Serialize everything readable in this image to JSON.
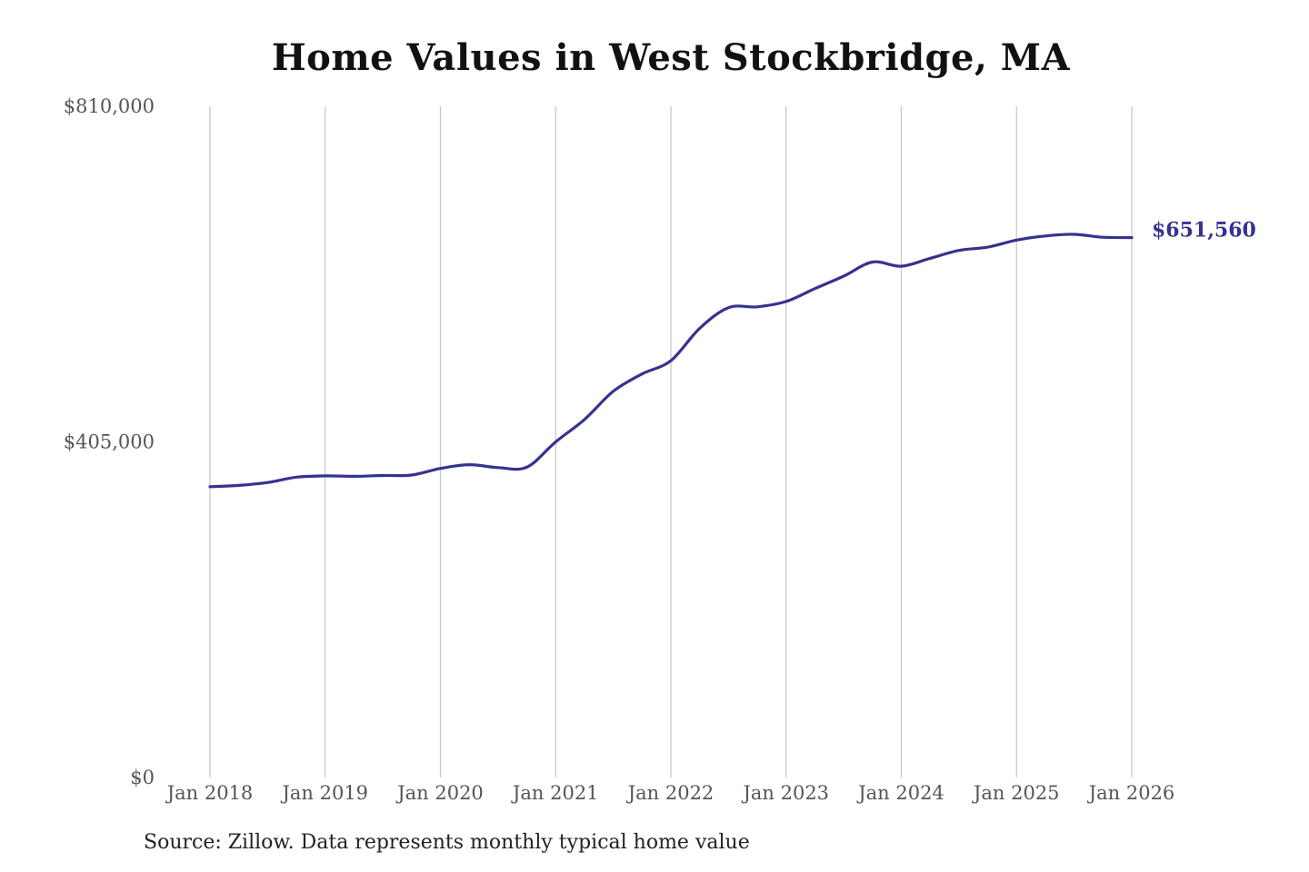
{
  "chart_data": {
    "type": "line",
    "title": "Home Values in West Stockbridge, MA",
    "xlabel": "",
    "ylabel": "",
    "ylim": [
      0,
      810000
    ],
    "xlim": [
      "2018-01",
      "2026-01"
    ],
    "yticks": [
      {
        "value": 0,
        "label": "$0"
      },
      {
        "value": 405000,
        "label": "$405,000"
      },
      {
        "value": 810000,
        "label": "$810,000"
      }
    ],
    "xticks": [
      {
        "value": "2018-01",
        "label": "Jan 2018"
      },
      {
        "value": "2019-01",
        "label": "Jan 2019"
      },
      {
        "value": "2020-01",
        "label": "Jan 2020"
      },
      {
        "value": "2021-01",
        "label": "Jan 2021"
      },
      {
        "value": "2022-01",
        "label": "Jan 2022"
      },
      {
        "value": "2023-01",
        "label": "Jan 2023"
      },
      {
        "value": "2024-01",
        "label": "Jan 2024"
      },
      {
        "value": "2025-01",
        "label": "Jan 2025"
      },
      {
        "value": "2026-01",
        "label": "Jan 2026"
      }
    ],
    "grid": {
      "vertical": true,
      "horizontal": false
    },
    "line_color": "#35338f",
    "series": [
      {
        "end_label": "$651,560",
        "points": [
          [
            "2018-01",
            351000
          ],
          [
            "2018-04",
            352500
          ],
          [
            "2018-07",
            356000
          ],
          [
            "2018-10",
            362500
          ],
          [
            "2019-01",
            364000
          ],
          [
            "2019-04",
            363500
          ],
          [
            "2019-07",
            364500
          ],
          [
            "2019-10",
            365000
          ],
          [
            "2020-01",
            373000
          ],
          [
            "2020-04",
            377500
          ],
          [
            "2020-07",
            374000
          ],
          [
            "2020-10",
            374500
          ],
          [
            "2021-01",
            405000
          ],
          [
            "2021-04",
            432000
          ],
          [
            "2021-07",
            466000
          ],
          [
            "2021-10",
            487000
          ],
          [
            "2022-01",
            503000
          ],
          [
            "2022-04",
            542000
          ],
          [
            "2022-07",
            567000
          ],
          [
            "2022-10",
            568000
          ],
          [
            "2023-01",
            574500
          ],
          [
            "2023-04",
            590000
          ],
          [
            "2023-07",
            605000
          ],
          [
            "2023-10",
            622000
          ],
          [
            "2024-01",
            617000
          ],
          [
            "2024-04",
            626500
          ],
          [
            "2024-07",
            636000
          ],
          [
            "2024-10",
            640000
          ],
          [
            "2025-01",
            648500
          ],
          [
            "2025-04",
            653500
          ],
          [
            "2025-07",
            655500
          ],
          [
            "2025-10",
            652000
          ],
          [
            "2026-01",
            651560
          ]
        ]
      }
    ]
  },
  "source": "Source: Zillow. Data represents monthly typical home value"
}
